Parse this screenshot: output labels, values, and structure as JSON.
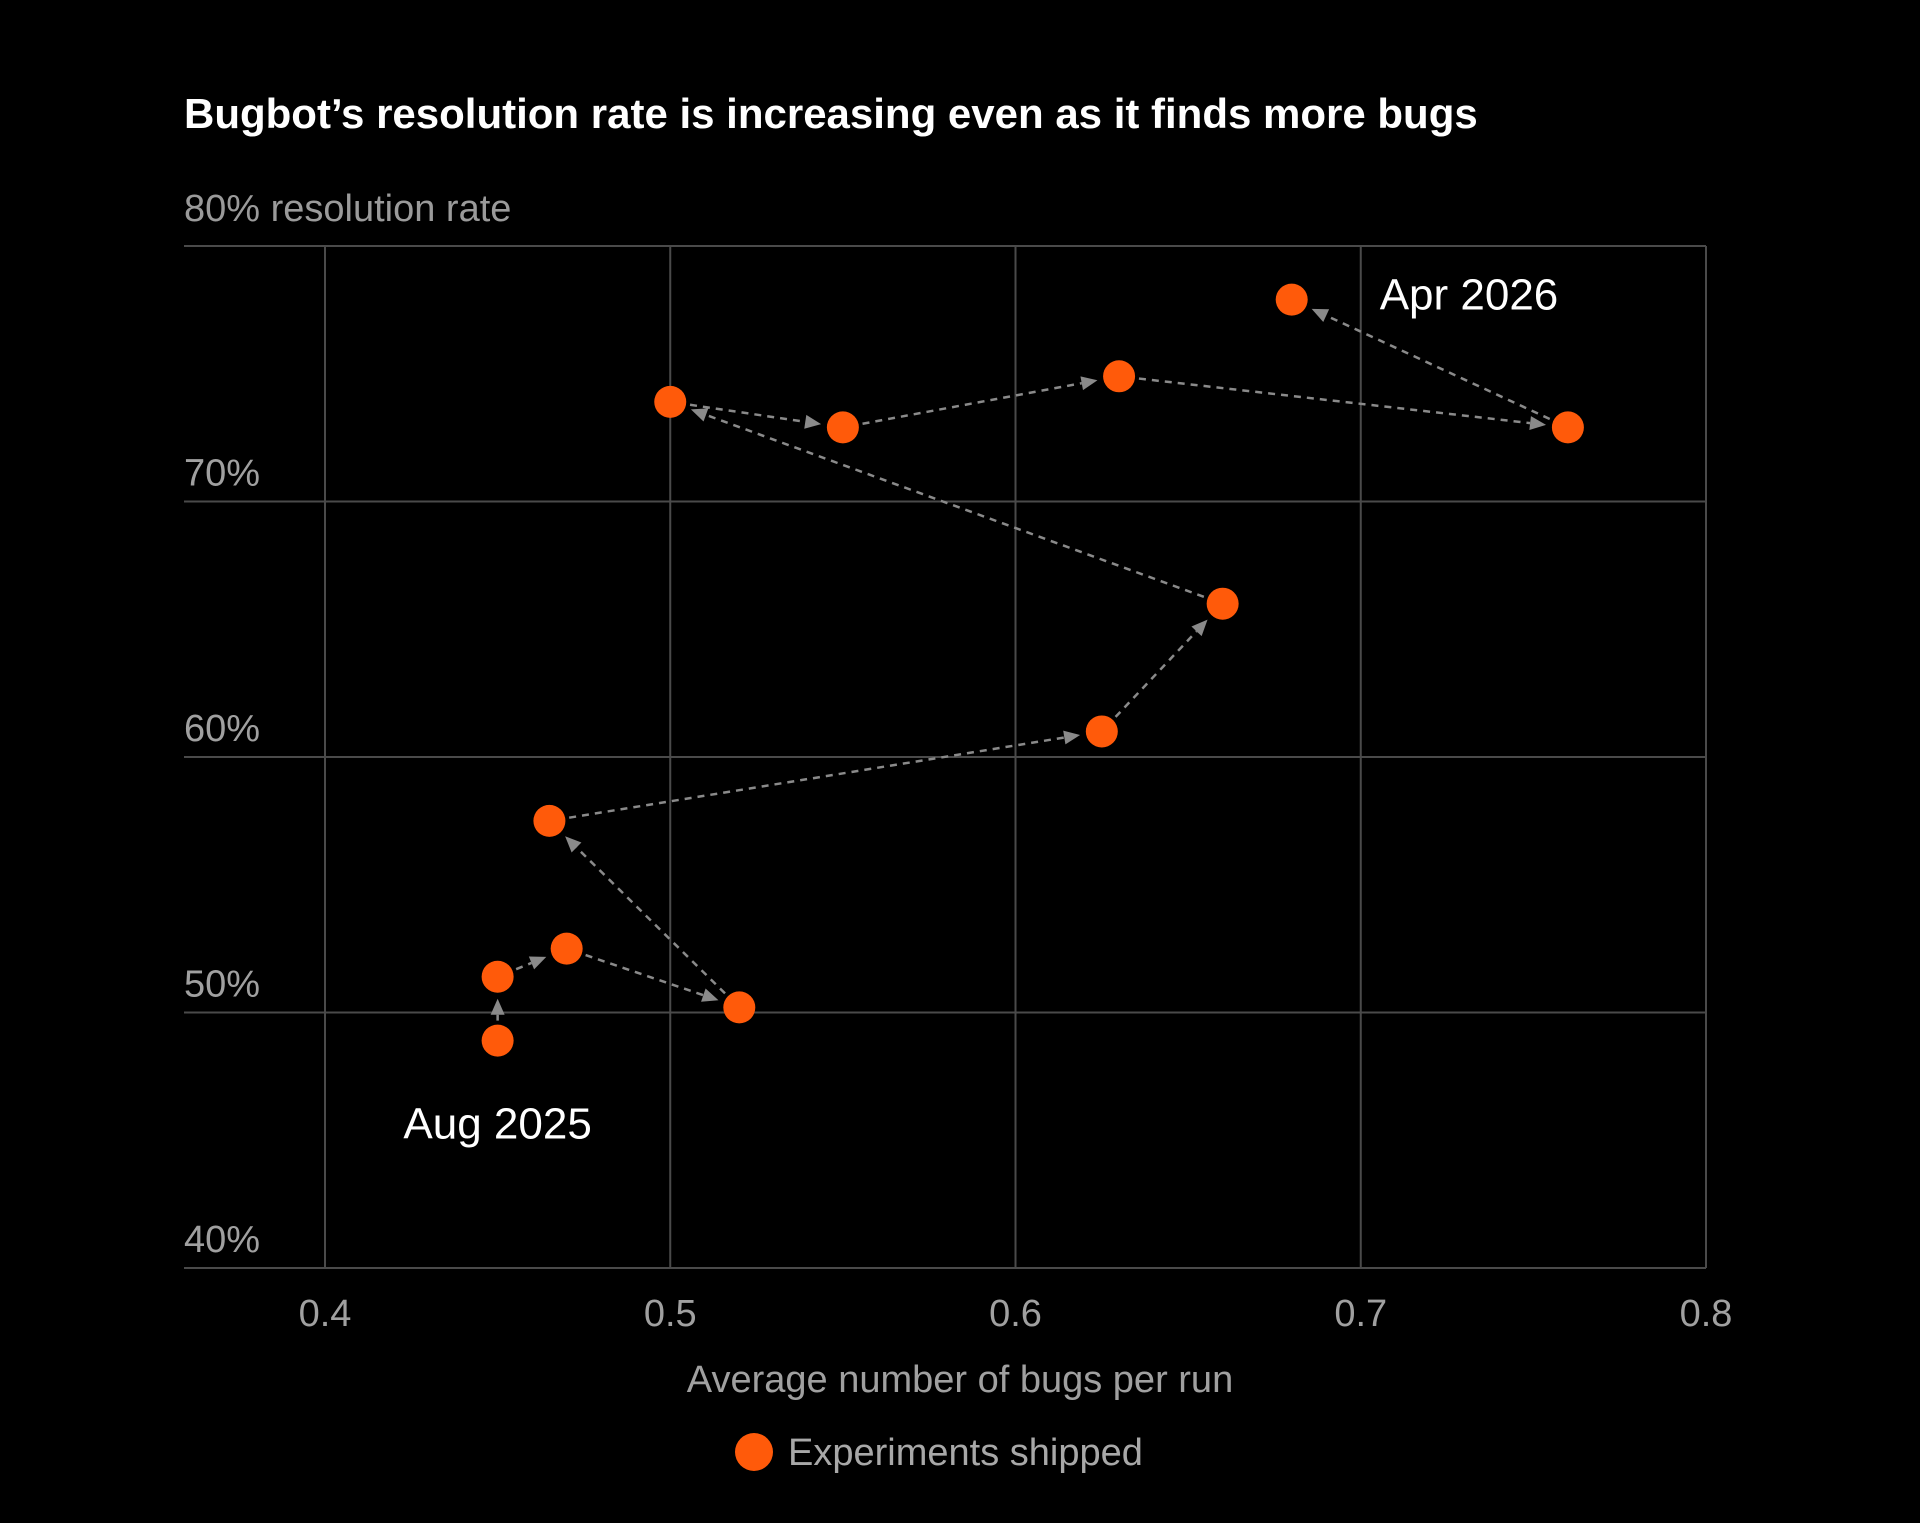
{
  "chart_data": {
    "type": "scatter",
    "title": "Bugbot’s resolution rate is increasing even as it finds more bugs",
    "ylabel": "80% resolution rate",
    "xlabel": "Average number of bugs per run",
    "xlim": [
      0.4,
      0.8
    ],
    "ylim": [
      40,
      80
    ],
    "x_ticks": [
      0.4,
      0.5,
      0.6,
      0.7,
      0.8
    ],
    "x_tick_labels": [
      "0.4",
      "0.5",
      "0.6",
      "0.7",
      "0.8"
    ],
    "y_ticks": [
      40,
      50,
      60,
      70
    ],
    "y_tick_labels": [
      "40%",
      "50%",
      "60%",
      "70%"
    ],
    "grid": true,
    "connected": true,
    "series": [
      {
        "name": "Experiments shipped",
        "color": "#ff5a0a",
        "points": [
          {
            "x": 0.45,
            "y": 48.9
          },
          {
            "x": 0.45,
            "y": 51.4
          },
          {
            "x": 0.47,
            "y": 52.5
          },
          {
            "x": 0.52,
            "y": 50.2
          },
          {
            "x": 0.465,
            "y": 57.5
          },
          {
            "x": 0.625,
            "y": 61.0
          },
          {
            "x": 0.66,
            "y": 66.0
          },
          {
            "x": 0.5,
            "y": 73.9
          },
          {
            "x": 0.55,
            "y": 72.9
          },
          {
            "x": 0.63,
            "y": 74.9
          },
          {
            "x": 0.76,
            "y": 72.9
          },
          {
            "x": 0.68,
            "y": 77.9
          }
        ]
      }
    ],
    "annotations": [
      {
        "text": "Aug 2025",
        "point_index": 0
      },
      {
        "text": "Apr 2026",
        "point_index": 11
      }
    ],
    "legend": {
      "label": "Experiments shipped",
      "placement": "bottom-center"
    }
  }
}
